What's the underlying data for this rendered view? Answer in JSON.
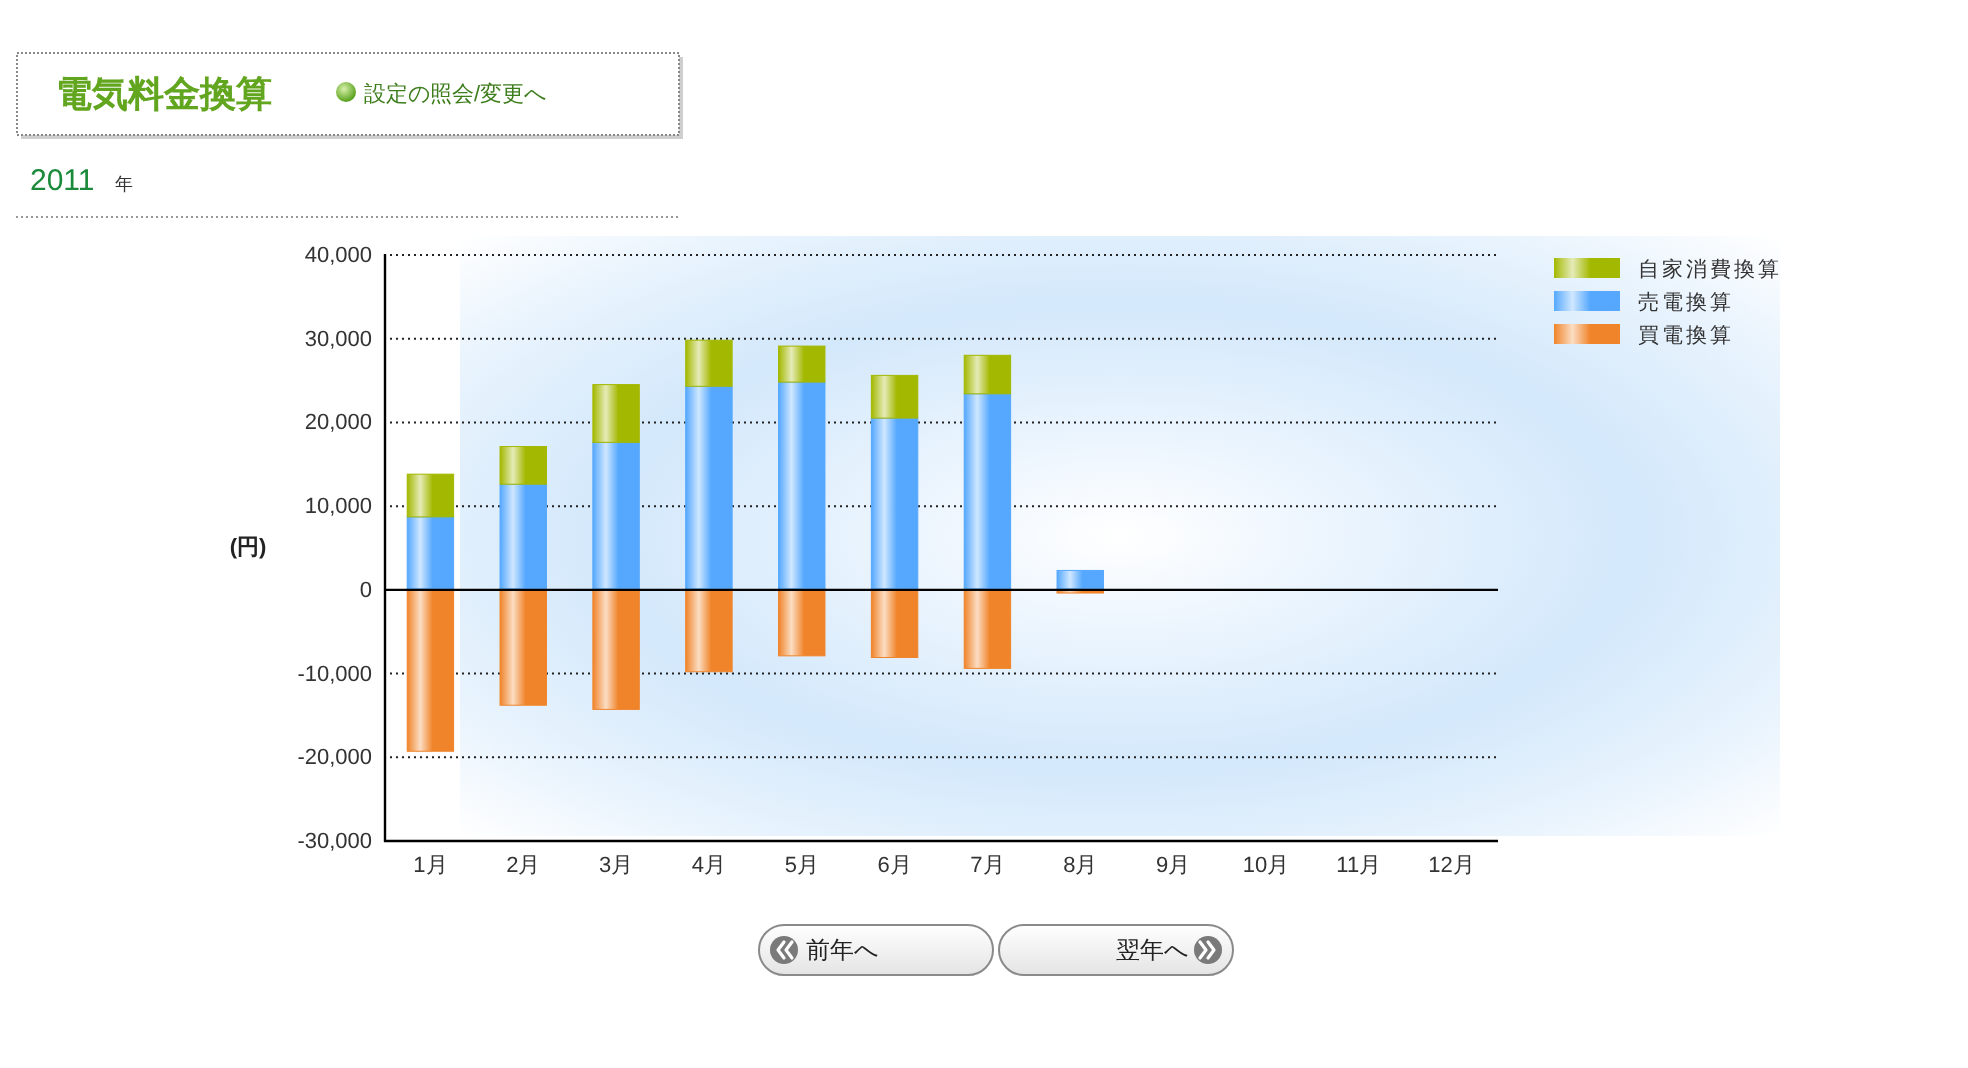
{
  "chart_data": {
    "type": "bar",
    "title": "電気料金換算",
    "subtitle": "2011 年",
    "ylabel": "(円)",
    "categories": [
      "1月",
      "2月",
      "3月",
      "4月",
      "5月",
      "6月",
      "7月",
      "8月",
      "9月",
      "10月",
      "11月",
      "12月"
    ],
    "stacked": true,
    "series": [
      {
        "name": "買電換算",
        "color": "#f0842a",
        "values": [
          -19400,
          -13900,
          -14400,
          -9900,
          -8000,
          -8200,
          -9500,
          -500,
          null,
          null,
          null,
          null
        ]
      },
      {
        "name": "売電換算",
        "color": "#55a8fe",
        "values": [
          8600,
          12500,
          17500,
          24200,
          24700,
          20400,
          23300,
          2200,
          null,
          null,
          null,
          null
        ]
      },
      {
        "name": "自家消費換算",
        "color": "#a3b800",
        "values": [
          5100,
          4500,
          6900,
          5500,
          4300,
          5100,
          4600,
          null,
          null,
          null,
          null,
          null
        ]
      }
    ],
    "ylim": [
      -30000,
      40000
    ],
    "yticks": [
      {
        "value": -30000,
        "label": "-30,000"
      },
      {
        "value": -20000,
        "label": "-20,000"
      },
      {
        "value": -10000,
        "label": "-10,000"
      },
      0,
      {
        "value": 10000,
        "label": "10,000"
      },
      {
        "value": 20000,
        "label": "20,000"
      },
      {
        "value": 30000,
        "label": "30,000"
      },
      {
        "value": 40000,
        "label": "40,000"
      }
    ],
    "grid": "y",
    "legend": "top right",
    "annotations": [
      "設定の照会/変更へ",
      "前年へ",
      "翌年へ"
    ]
  }
}
